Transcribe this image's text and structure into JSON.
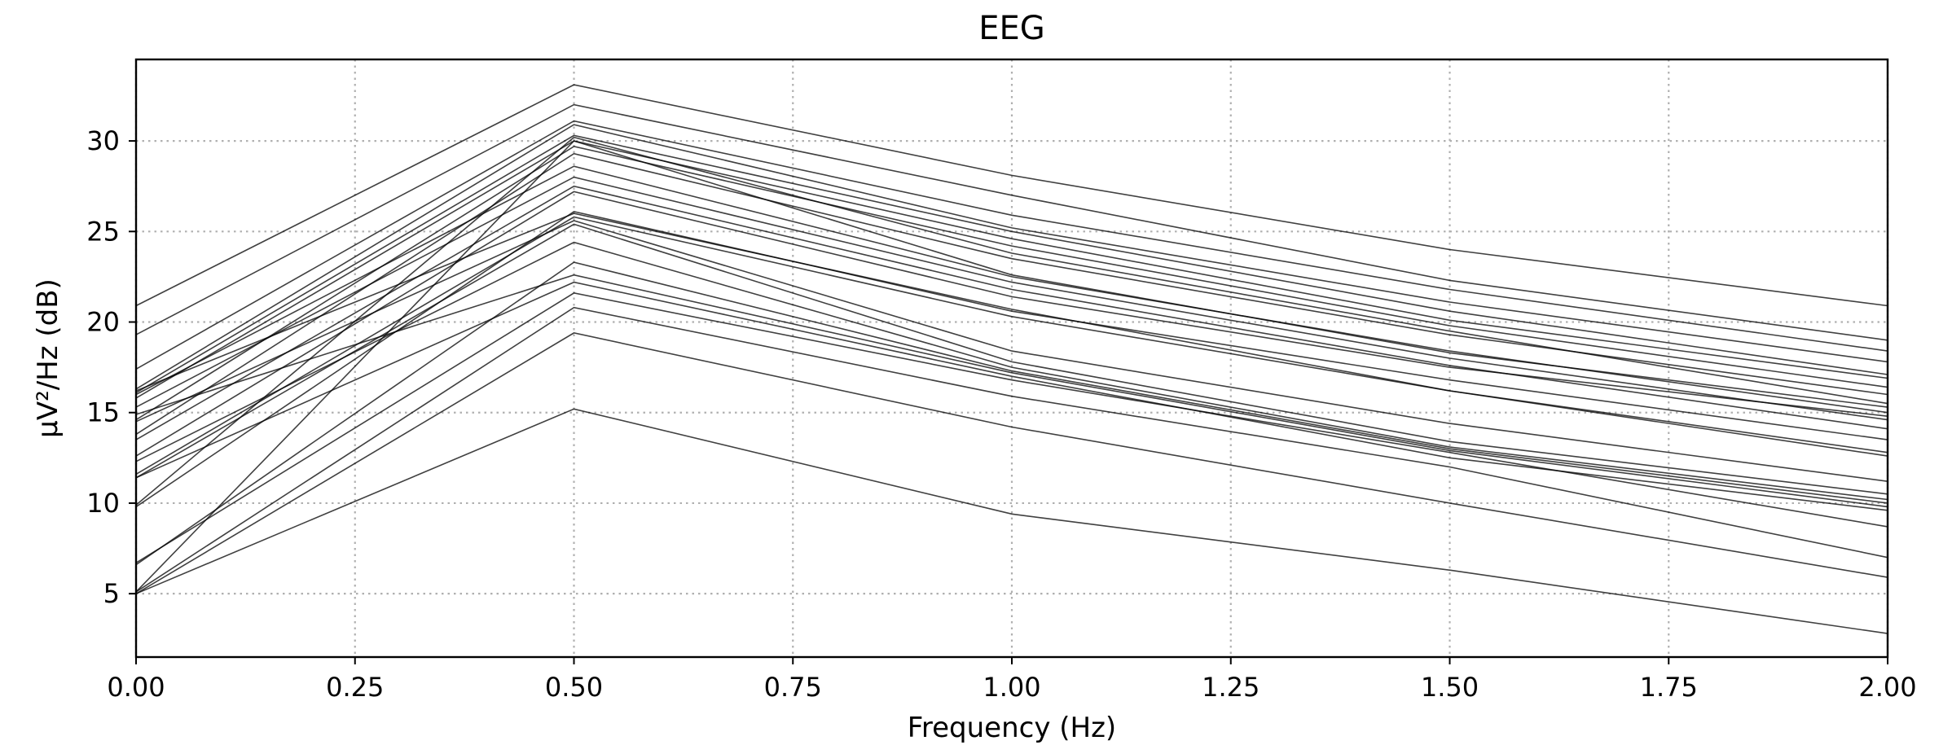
{
  "chart_data": {
    "type": "line",
    "title": "EEG",
    "xlabel": "Frequency (Hz)",
    "ylabel": "µV²/Hz (dB)",
    "xlim": [
      0,
      2
    ],
    "ylim": [
      1.5,
      34.5
    ],
    "grid": true,
    "line_color": "#000000",
    "x_ticks": [
      "0.00",
      "0.25",
      "0.50",
      "0.75",
      "1.00",
      "1.25",
      "1.50",
      "1.75",
      "2.00"
    ],
    "y_ticks": [
      "5",
      "10",
      "15",
      "20",
      "25",
      "30"
    ],
    "x": [
      0,
      0.5,
      1.0,
      1.5,
      2.0
    ],
    "series": [
      {
        "values": [
          20.9,
          33.1,
          28.1,
          24.0,
          20.9
        ]
      },
      {
        "values": [
          19.3,
          32.0,
          27.0,
          22.3,
          19.0
        ]
      },
      {
        "values": [
          17.4,
          31.1,
          25.9,
          21.8,
          18.4
        ]
      },
      {
        "values": [
          16.3,
          30.9,
          25.2,
          21.1,
          17.8
        ]
      },
      {
        "values": [
          16.1,
          30.3,
          25.0,
          20.6,
          17.1
        ]
      },
      {
        "values": [
          15.8,
          30.0,
          24.6,
          20.1,
          16.9
        ]
      },
      {
        "values": [
          14.6,
          29.7,
          24.2,
          19.8,
          16.4
        ]
      },
      {
        "values": [
          13.8,
          29.3,
          23.5,
          19.3,
          16.0
        ]
      },
      {
        "values": [
          9.9,
          30.2,
          23.8,
          19.5,
          15.5
        ]
      },
      {
        "values": [
          5.1,
          30.0,
          22.6,
          18.3,
          15.3
        ]
      },
      {
        "values": [
          16.0,
          28.6,
          22.5,
          18.4,
          15.0
        ]
      },
      {
        "values": [
          15.3,
          28.0,
          22.2,
          18.0,
          14.6
        ]
      },
      {
        "values": [
          13.5,
          27.5,
          21.8,
          17.6,
          14.1
        ]
      },
      {
        "values": [
          12.6,
          27.2,
          21.4,
          17.5,
          14.8
        ]
      },
      {
        "values": [
          9.8,
          26.1,
          20.6,
          16.8,
          13.5
        ]
      },
      {
        "values": [
          16.2,
          26.0,
          20.7,
          16.2,
          12.8
        ]
      },
      {
        "values": [
          11.6,
          25.8,
          20.3,
          16.2,
          12.6
        ]
      },
      {
        "values": [
          14.5,
          25.6,
          18.4,
          14.4,
          11.2
        ]
      },
      {
        "values": [
          11.4,
          25.4,
          17.8,
          13.4,
          10.5
        ]
      },
      {
        "values": [
          12.3,
          24.4,
          17.5,
          13.1,
          10.2
        ]
      },
      {
        "values": [
          6.6,
          23.3,
          17.3,
          13.0,
          10.0
        ]
      },
      {
        "values": [
          14.9,
          22.6,
          17.2,
          12.9,
          9.8
        ]
      },
      {
        "values": [
          11.4,
          22.2,
          17.0,
          12.5,
          9.6
        ]
      },
      {
        "values": [
          6.7,
          21.6,
          16.8,
          12.8,
          8.7
        ]
      },
      {
        "values": [
          5.1,
          20.8,
          15.9,
          12.0,
          7.0
        ]
      },
      {
        "values": [
          5.0,
          19.4,
          14.2,
          10.0,
          5.9
        ]
      },
      {
        "values": [
          5.0,
          15.2,
          9.4,
          6.3,
          2.8
        ]
      }
    ]
  }
}
